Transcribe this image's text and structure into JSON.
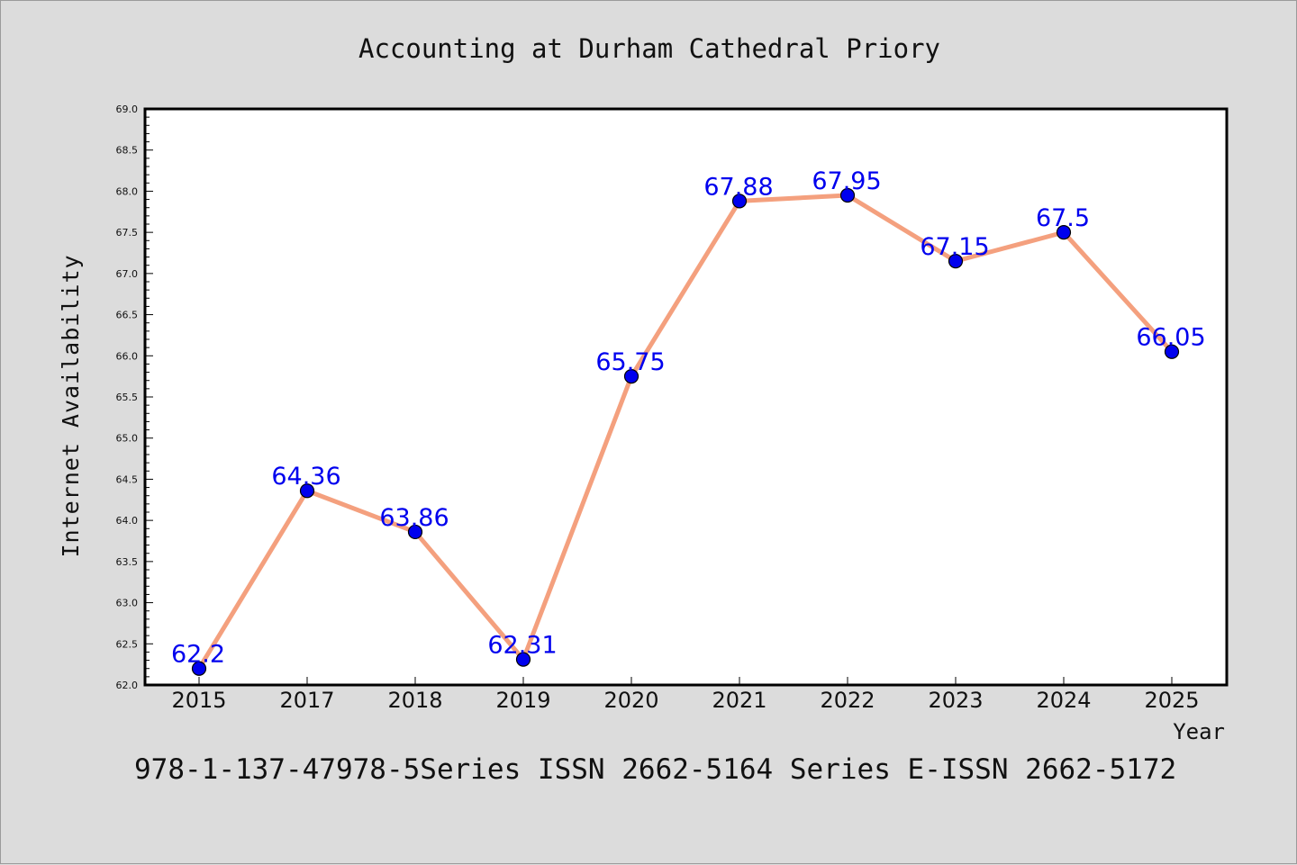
{
  "chart_data": {
    "type": "line",
    "title": "Accounting at Durham Cathedral Priory",
    "xlabel": "Year",
    "ylabel": "Internet Availability",
    "categories": [
      "2015",
      "2017",
      "2018",
      "2019",
      "2020",
      "2021",
      "2022",
      "2023",
      "2024",
      "2025"
    ],
    "values": [
      62.2,
      64.36,
      63.86,
      62.31,
      65.75,
      67.88,
      67.95,
      67.15,
      67.5,
      66.05
    ],
    "data_labels": [
      "62.2",
      "64.36",
      "63.86",
      "62.31",
      "65.75",
      "67.88",
      "67.95",
      "67.15",
      "67.5",
      "66.05"
    ],
    "yticks": [
      "62.0",
      "62.5",
      "63.0",
      "63.5",
      "64.0",
      "64.5",
      "65.0",
      "65.5",
      "66.0",
      "66.5",
      "67.0",
      "67.5",
      "68.0",
      "68.5",
      "69.0"
    ],
    "ylim": [
      62.0,
      69.0
    ],
    "grid": false,
    "colors": {
      "line": "#f4a07e",
      "marker": "#0000ee",
      "label": "#0000ee",
      "background": "#dcdcdc",
      "plot_bg": "#ffffff"
    }
  },
  "footer": "978-1-137-47978-5Series ISSN 2662-5164 Series E-ISSN 2662-5172"
}
